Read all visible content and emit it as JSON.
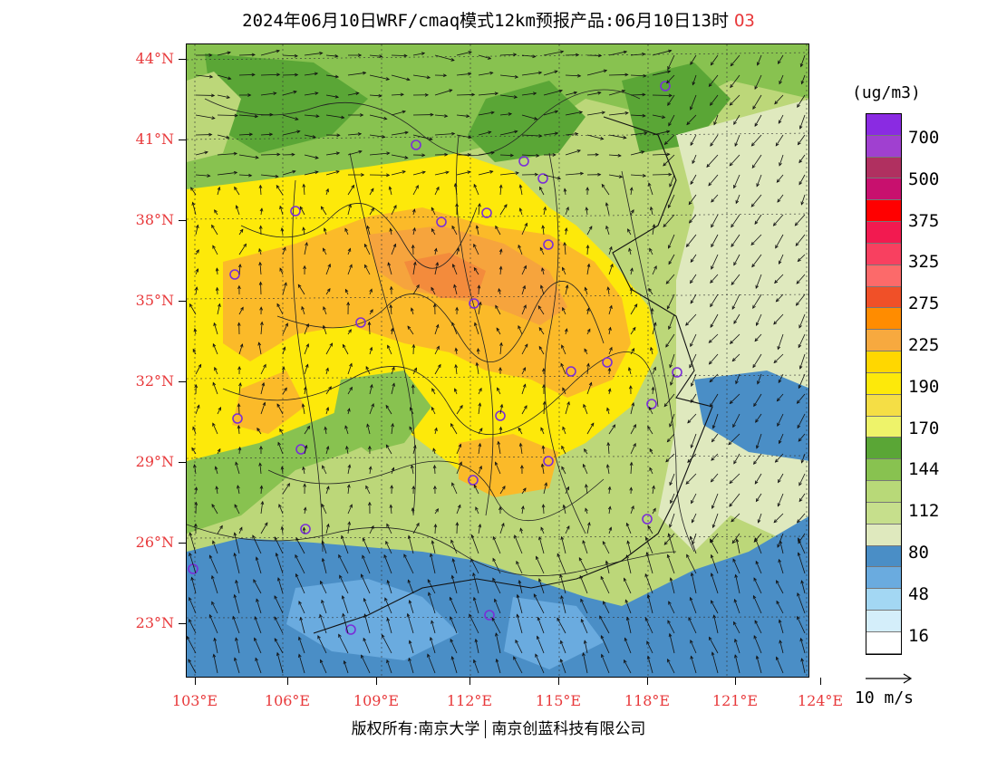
{
  "title": {
    "text": "2024年06月10日WRF/cmaq模式12km预报产品:06月10日13时",
    "species": "O3"
  },
  "map": {
    "lat_labels": [
      "44°N",
      "41°N",
      "38°N",
      "35°N",
      "32°N",
      "29°N",
      "26°N",
      "23°N"
    ],
    "lon_labels": [
      "103°E",
      "106°E",
      "109°E",
      "112°E",
      "115°E",
      "118°E",
      "121°E",
      "124°E"
    ],
    "colors": {
      "sea": "#4a8ec6",
      "ocean_light": "#6aabdf",
      "low": "#dfe9be",
      "greenlight": "#bcd779",
      "green": "#88c250",
      "greendark": "#5aa636",
      "yellowpale": "#f1ee64",
      "yellow": "#fde90a",
      "orange1": "#fbba29",
      "orange2": "#f6a43d",
      "orange3": "#f38b3c",
      "station": "#7a2ed8"
    }
  },
  "legend": {
    "unit": "(ug/m3)",
    "colors": [
      "#8a2be2",
      "#a040d0",
      "#b03060",
      "#c8106e",
      "#ff0000",
      "#f21a50",
      "#f84060",
      "#fc6a6a",
      "#f05028",
      "#ff8c00",
      "#f7a93f",
      "#ffd700",
      "#fde90a",
      "#f5de45",
      "#eef36a",
      "#5aa636",
      "#88c250",
      "#b8d978",
      "#c6df8c",
      "#dfe9be",
      "#4a8ec6",
      "#6aabdf",
      "#a3d7f3",
      "#d4eefa",
      "#ffffff"
    ],
    "labels": [
      "700",
      "500",
      "375",
      "325",
      "275",
      "225",
      "190",
      "170",
      "144",
      "112",
      "80",
      "48",
      "16"
    ]
  },
  "wind_reference": "10 m/s",
  "copyright": {
    "left": "版权所有:南京大学",
    "right": "南京创蓝科技有限公司"
  }
}
